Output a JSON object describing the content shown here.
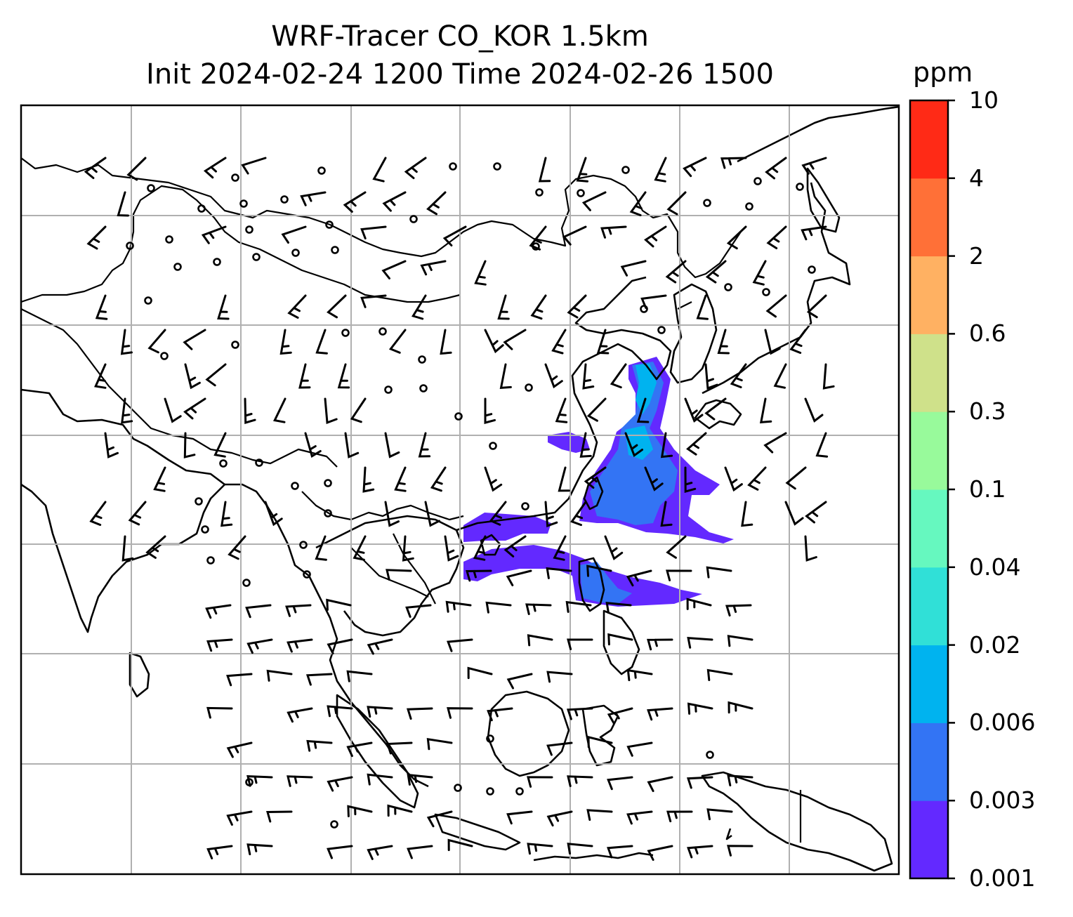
{
  "title_line1": "WRF-Tracer CO_KOR 1.5km",
  "title_line2": "Init 2024-02-24 1200 Time 2024-02-26 1500",
  "colorbar": {
    "units": "ppm",
    "ticks": [
      "0.001",
      "0.003",
      "0.006",
      "0.02",
      "0.04",
      "0.1",
      "0.3",
      "0.6",
      "2",
      "4",
      "10"
    ],
    "colors": [
      "#6329ff",
      "#3374f4",
      "#00b3ef",
      "#30e0d7",
      "#66f8bf",
      "#98fa9b",
      "#cfe18a",
      "#ffb162",
      "#ff7037",
      "#ff2a16"
    ]
  },
  "map": {
    "gridlines": true,
    "plume_color_main": "#6329ff",
    "plume_color_mid": "#3374f4",
    "plume_color_core": "#00b3ef"
  }
}
